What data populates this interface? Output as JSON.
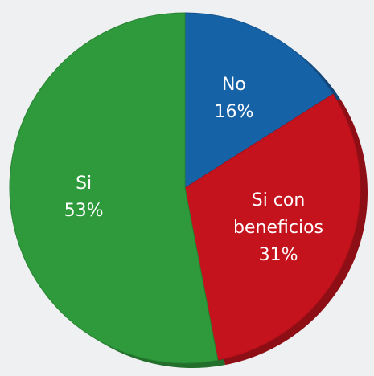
{
  "chart_data": {
    "type": "pie",
    "categories": [
      "No",
      "Si con beneficios",
      "Si"
    ],
    "values": [
      16,
      31,
      53
    ],
    "value_labels": [
      "16%",
      "31%",
      "53%"
    ],
    "colors": [
      "#1662a6",
      "#c5131d",
      "#2f9a3c"
    ]
  }
}
